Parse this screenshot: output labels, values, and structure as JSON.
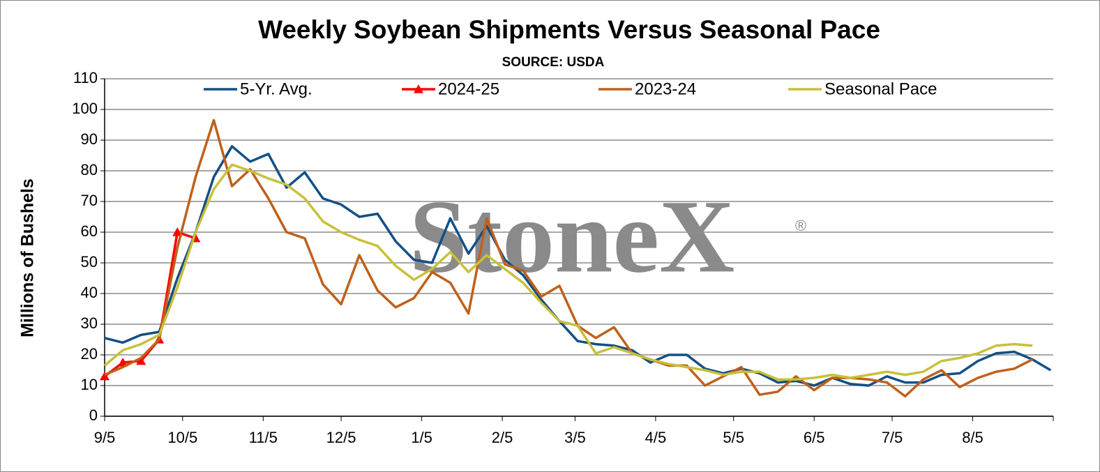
{
  "chart_data": {
    "type": "line",
    "title": "Weekly Soybean Shipments Versus Seasonal Pace",
    "subtitle": "SOURCE: USDA",
    "y_label": "Millions of Bushels",
    "watermark": "StoneX",
    "watermark_mark": "®",
    "x": [
      0,
      7,
      14,
      21,
      28,
      35,
      42,
      49,
      56,
      63,
      70,
      77,
      84,
      91,
      98,
      105,
      112,
      119,
      126,
      133,
      140,
      147,
      154,
      161,
      168,
      175,
      182,
      189,
      196,
      203,
      210,
      217,
      224,
      231,
      238,
      245,
      252,
      259,
      266,
      273,
      280,
      287,
      294,
      301,
      308,
      315,
      322,
      329,
      336,
      343,
      350,
      357,
      364
    ],
    "xlim": [
      0,
      365
    ],
    "xticks": [
      {
        "value": 0,
        "label": "9/5"
      },
      {
        "value": 30,
        "label": "10/5"
      },
      {
        "value": 61,
        "label": "11/5"
      },
      {
        "value": 91,
        "label": "12/5"
      },
      {
        "value": 122,
        "label": "1/5"
      },
      {
        "value": 153,
        "label": "2/5"
      },
      {
        "value": 181,
        "label": "3/5"
      },
      {
        "value": 212,
        "label": "4/5"
      },
      {
        "value": 242,
        "label": "5/5"
      },
      {
        "value": 273,
        "label": "6/5"
      },
      {
        "value": 303,
        "label": "7/5"
      },
      {
        "value": 334,
        "label": "8/5"
      }
    ],
    "ylim": [
      0,
      110
    ],
    "yticks": [
      0,
      10,
      20,
      30,
      40,
      50,
      60,
      70,
      80,
      90,
      100,
      110
    ],
    "grid": true,
    "legend": "top",
    "series": [
      {
        "name": "5-Yr. Avg.",
        "color": "#134f86",
        "marker": "none",
        "values": [
          25.5,
          24,
          26.5,
          27.5,
          45,
          60,
          78,
          88,
          83,
          85.5,
          74.5,
          79.5,
          71,
          69,
          65,
          66,
          57,
          51,
          50,
          64.5,
          53,
          62,
          51,
          46,
          38,
          31,
          24.5,
          23.5,
          23,
          21.5,
          17.5,
          20,
          20,
          15.5,
          14,
          15.5,
          14,
          11,
          11.5,
          10,
          12.5,
          10.5,
          10,
          13,
          11,
          11,
          13.5,
          14,
          18,
          20.5,
          21,
          18.5,
          15
        ]
      },
      {
        "name": "2024-25",
        "color": "#ff0000",
        "marker": "triangle",
        "values": [
          13,
          17.5,
          18,
          25,
          60,
          58,
          null,
          null,
          null,
          null,
          null,
          null,
          null,
          null,
          null,
          null,
          null,
          null,
          null,
          null,
          null,
          null,
          null,
          null,
          null,
          null,
          null,
          null,
          null,
          null,
          null,
          null,
          null,
          null,
          null,
          null,
          null,
          null,
          null,
          null,
          null,
          null,
          null,
          null,
          null,
          null,
          null,
          null,
          null,
          null,
          null,
          null,
          null
        ]
      },
      {
        "name": "2023-24",
        "color": "#c0601a",
        "marker": "none",
        "values": [
          13.5,
          16,
          19,
          25,
          55,
          78,
          96.5,
          75,
          80.5,
          71,
          60,
          58,
          43,
          36.5,
          52.5,
          41,
          35.5,
          38.5,
          47,
          43.5,
          33.5,
          64.5,
          49.5,
          47.5,
          39,
          42.5,
          29.5,
          25.5,
          29,
          20.5,
          18.5,
          16.5,
          16.5,
          10,
          13,
          16,
          7,
          8,
          13,
          8.5,
          12.5,
          12.5,
          12,
          11,
          6.5,
          12,
          15,
          9.5,
          12.5,
          14.5,
          15.5,
          18.5,
          null
        ]
      },
      {
        "name": "Seasonal Pace",
        "color": "#c8c03a",
        "marker": "none",
        "values": [
          16.5,
          21.5,
          23.5,
          26.5,
          42,
          60,
          74,
          82,
          80,
          77.5,
          75.5,
          71,
          63.5,
          60,
          57.5,
          55.5,
          49,
          44.5,
          48,
          53.5,
          47,
          52.5,
          48,
          43.5,
          37,
          31,
          29.5,
          20.5,
          22.5,
          20.5,
          18.5,
          17,
          16,
          15,
          13.5,
          14.5,
          14.5,
          12,
          12,
          12.5,
          13.5,
          12.5,
          13.5,
          14.5,
          13.5,
          14.5,
          18,
          19,
          20.5,
          23,
          23.5,
          23,
          null
        ]
      }
    ]
  }
}
